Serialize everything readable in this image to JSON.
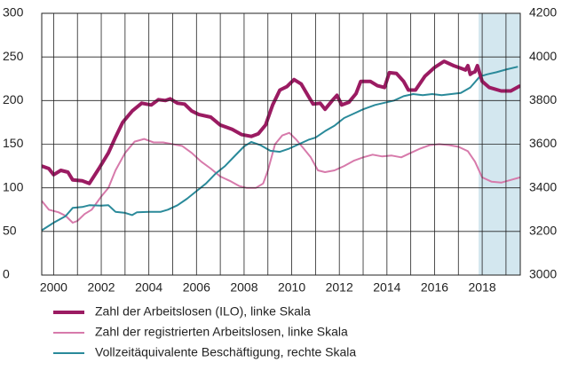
{
  "chart_data": {
    "type": "line",
    "xlim": [
      1999.5,
      2019.6
    ],
    "xticks": [
      2000,
      2002,
      2004,
      2006,
      2008,
      2010,
      2012,
      2014,
      2016,
      2018
    ],
    "xgrid_minor": [
      2001,
      2003,
      2005,
      2007,
      2009,
      2011,
      2013,
      2015,
      2017,
      2019
    ],
    "ylim": [
      0,
      300
    ],
    "yticks": [
      0,
      50,
      100,
      150,
      200,
      250,
      300
    ],
    "y2lim": [
      3000,
      4200
    ],
    "y2ticks": [
      3000,
      3200,
      3400,
      3600,
      3800,
      4000,
      4200
    ],
    "grid": true,
    "shade": {
      "range": [
        2017.85,
        2019.6
      ],
      "color": "#d3e7ef"
    },
    "series": [
      {
        "name": "Zahl der Arbeitslosen (ILO), linke Skala",
        "color": "#9b1b62",
        "width": 4,
        "x": [
          1999.5,
          1999.8,
          2000.0,
          2000.3,
          2000.6,
          2000.8,
          2001.2,
          2001.5,
          2001.9,
          2002.3,
          2002.6,
          2002.9,
          2003.3,
          2003.7,
          2004.1,
          2004.4,
          2004.7,
          2004.9,
          2005.2,
          2005.5,
          2005.8,
          2006.1,
          2006.6,
          2007.0,
          2007.5,
          2007.9,
          2008.3,
          2008.6,
          2008.9,
          2009.2,
          2009.5,
          2009.8,
          2010.1,
          2010.4,
          2010.7,
          2010.9,
          2011.2,
          2011.4,
          2011.7,
          2011.9,
          2012.1,
          2012.4,
          2012.7,
          2012.9,
          2013.3,
          2013.6,
          2013.9,
          2014.1,
          2014.4,
          2014.7,
          2014.9,
          2015.2,
          2015.6,
          2016.0,
          2016.4,
          2016.8,
          2017.1,
          2017.3,
          2017.4,
          2017.5,
          2017.6,
          2017.7,
          2017.8,
          2018.0,
          2018.3,
          2018.8,
          2019.2,
          2019.6
        ],
        "values": [
          125,
          122,
          115,
          120,
          118,
          109,
          108,
          105,
          122,
          140,
          158,
          175,
          188,
          197,
          195,
          201,
          200,
          202,
          197,
          196,
          188,
          184,
          181,
          172,
          167,
          161,
          159,
          162,
          172,
          195,
          212,
          216,
          224,
          219,
          205,
          196,
          197,
          190,
          200,
          206,
          195,
          198,
          208,
          222,
          222,
          217,
          215,
          232,
          231,
          222,
          212,
          212,
          228,
          238,
          245,
          240,
          237,
          235,
          240,
          230,
          232,
          233,
          240,
          222,
          215,
          211,
          211,
          217
        ]
      },
      {
        "name": "Zahl der registrierten Arbeitslosen, linke Skala",
        "color": "#d77aab",
        "width": 2,
        "x": [
          1999.5,
          1999.8,
          2000.2,
          2000.5,
          2000.8,
          2001.0,
          2001.3,
          2001.6,
          2002.0,
          2002.3,
          2002.6,
          2003.0,
          2003.4,
          2003.8,
          2004.2,
          2004.6,
          2005.0,
          2005.4,
          2005.8,
          2006.2,
          2006.6,
          2007.0,
          2007.4,
          2007.8,
          2008.1,
          2008.5,
          2008.8,
          2009.0,
          2009.3,
          2009.6,
          2009.9,
          2010.2,
          2010.5,
          2010.8,
          2011.1,
          2011.4,
          2011.8,
          2012.2,
          2012.6,
          2013.0,
          2013.4,
          2013.8,
          2014.2,
          2014.6,
          2015.0,
          2015.4,
          2015.8,
          2016.2,
          2016.6,
          2017.0,
          2017.4,
          2017.7,
          2018.0,
          2018.4,
          2018.8,
          2019.2,
          2019.6
        ],
        "values": [
          85,
          75,
          72,
          68,
          60,
          62,
          70,
          75,
          90,
          100,
          120,
          140,
          153,
          156,
          152,
          152,
          150,
          148,
          140,
          130,
          122,
          113,
          108,
          102,
          100,
          100,
          105,
          120,
          150,
          160,
          163,
          155,
          145,
          135,
          120,
          118,
          120,
          125,
          131,
          135,
          138,
          136,
          137,
          135,
          140,
          145,
          149,
          150,
          149,
          147,
          142,
          130,
          112,
          107,
          106,
          109,
          112
        ]
      },
      {
        "name": "Vollzeitäquivalente Beschäftigung, rechte Skala",
        "color": "#2a8a9a",
        "width": 2,
        "axis": "y2",
        "x": [
          1999.5,
          2000.0,
          2000.5,
          2000.8,
          2001.2,
          2001.5,
          2002.0,
          2002.3,
          2002.6,
          2003.0,
          2003.3,
          2003.5,
          2004.0,
          2004.5,
          2004.8,
          2005.2,
          2005.6,
          2006.0,
          2006.4,
          2006.8,
          2007.2,
          2007.6,
          2008.0,
          2008.3,
          2008.7,
          2009.1,
          2009.5,
          2009.9,
          2010.3,
          2010.7,
          2011.0,
          2011.4,
          2011.8,
          2012.2,
          2012.6,
          2013.0,
          2013.5,
          2013.9,
          2014.3,
          2014.7,
          2015.1,
          2015.5,
          2015.9,
          2016.3,
          2016.7,
          2017.1,
          2017.5,
          2017.9,
          2018.2,
          2018.6,
          2019.0,
          2019.5
        ],
        "values": [
          3205,
          3240,
          3270,
          3308,
          3312,
          3320,
          3318,
          3320,
          3290,
          3285,
          3275,
          3288,
          3290,
          3290,
          3300,
          3320,
          3350,
          3385,
          3420,
          3465,
          3500,
          3545,
          3590,
          3610,
          3595,
          3570,
          3565,
          3580,
          3600,
          3620,
          3630,
          3660,
          3685,
          3720,
          3740,
          3760,
          3780,
          3790,
          3800,
          3820,
          3830,
          3825,
          3830,
          3825,
          3830,
          3835,
          3860,
          3910,
          3920,
          3930,
          3942,
          3955
        ]
      }
    ]
  }
}
